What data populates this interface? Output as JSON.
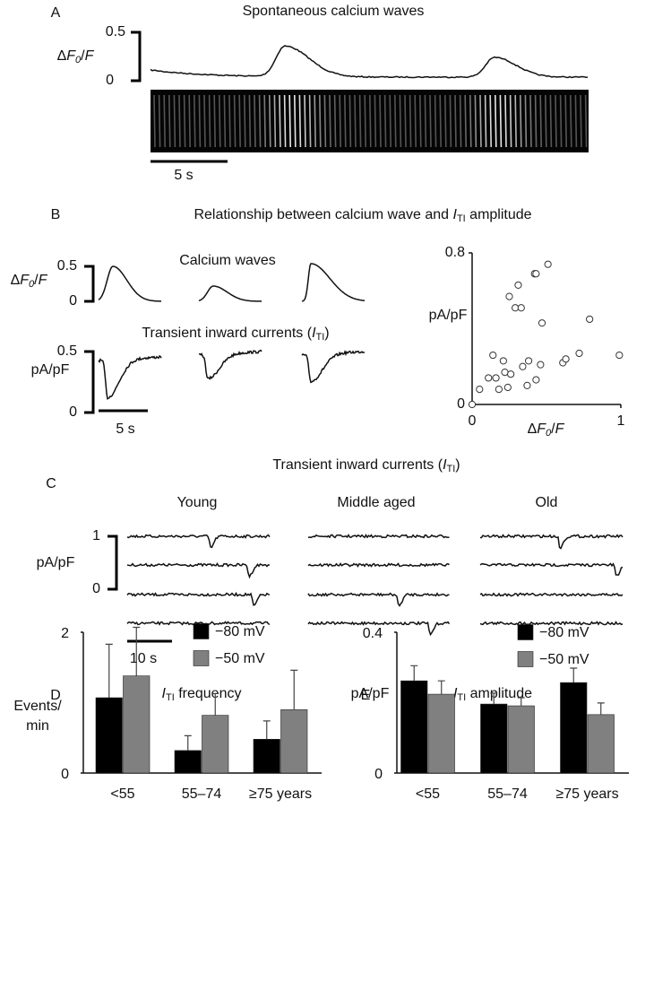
{
  "panel_a": {
    "letter": "A",
    "title": "Spontaneous calcium waves",
    "scale_top": 0.5,
    "scale_bottom": 0,
    "ylabel": [
      "Δ",
      "F",
      "0",
      "/",
      "F"
    ],
    "time_bar": "5 s"
  },
  "panel_b": {
    "letter": "B",
    "title": [
      "Relationship between calcium wave and ",
      "I",
      "TI",
      " amplitude"
    ],
    "calcium_label": "Calcium waves",
    "calcium_scale_top": 0.5,
    "calcium_scale_bottom": 0,
    "calcium_ylabel": [
      "Δ",
      "F",
      "0",
      "/",
      "F"
    ],
    "current_label": [
      "Transient inward currents (",
      "I",
      "TI",
      ")"
    ],
    "current_scale_top": 0.5,
    "current_scale_bottom": 0,
    "current_ylabel": "pA/pF",
    "time_bar": "5 s"
  },
  "panel_c": {
    "letter": "C",
    "title": [
      "Transient inward currents (",
      "I",
      "TI",
      ")"
    ],
    "groups": [
      "Young",
      "Middle aged",
      "Old"
    ],
    "scale_top": 1,
    "scale_bottom": 0,
    "ylabel": "pA/pF",
    "time_bar": "10 s"
  },
  "chart_data": [
    {
      "type": "scatter",
      "xlabel": [
        "Δ",
        "F",
        "0",
        "/",
        "F"
      ],
      "ylabel": "pA/pF",
      "x": [
        0,
        0.05,
        0.11,
        0.14,
        0.16,
        0.18,
        0.21,
        0.22,
        0.24,
        0.25,
        0.26,
        0.29,
        0.31,
        0.33,
        0.34,
        0.37,
        0.38,
        0.42,
        0.43,
        0.43,
        0.46,
        0.47,
        0.51,
        0.61,
        0.63,
        0.72,
        0.79,
        0.99
      ],
      "y": [
        0,
        0.08,
        0.14,
        0.26,
        0.14,
        0.08,
        0.23,
        0.17,
        0.09,
        0.57,
        0.16,
        0.51,
        0.63,
        0.51,
        0.2,
        0.1,
        0.23,
        0.69,
        0.69,
        0.13,
        0.21,
        0.43,
        0.74,
        0.22,
        0.24,
        0.27,
        0.45,
        0.26
      ],
      "color": "#333333",
      "xlim": [
        0,
        1
      ],
      "ylim": [
        0,
        0.8
      ],
      "xticks": [
        0,
        1
      ],
      "yticks": [
        0,
        0.8
      ]
    },
    {
      "type": "bar",
      "letter": "D",
      "title": [
        "I",
        "TI",
        " frequency"
      ],
      "ylabel": [
        "Events/",
        "min"
      ],
      "categories": [
        "<55",
        "55–74",
        "≥75 years"
      ],
      "series": [
        {
          "name": "−80 mV",
          "color": "#000000",
          "values": [
            1.07,
            0.32,
            0.48
          ],
          "errors": [
            0.76,
            0.21,
            0.26
          ]
        },
        {
          "name": "−50 mV",
          "color": "#808080",
          "values": [
            1.38,
            0.82,
            0.9
          ],
          "errors": [
            0.69,
            0.31,
            0.56
          ]
        }
      ],
      "ylim": [
        0,
        2
      ],
      "yticks": [
        0,
        2
      ],
      "legend": "upper right"
    },
    {
      "type": "bar",
      "letter": "E",
      "title": [
        "I",
        "TI",
        " amplitude"
      ],
      "ylabel": [
        "pA/pF"
      ],
      "categories": [
        "<55",
        "55–74",
        "≥75 years"
      ],
      "series": [
        {
          "name": "−80 mV",
          "color": "#000000",
          "values": [
            0.262,
            0.196,
            0.257
          ],
          "errors": [
            0.043,
            0.031,
            0.041
          ]
        },
        {
          "name": "−50 mV",
          "color": "#808080",
          "values": [
            0.224,
            0.191,
            0.166
          ],
          "errors": [
            0.038,
            0.023,
            0.033
          ]
        }
      ],
      "ylim": [
        0,
        0.4
      ],
      "yticks": [
        0,
        0.4
      ],
      "legend": "upper right"
    }
  ]
}
